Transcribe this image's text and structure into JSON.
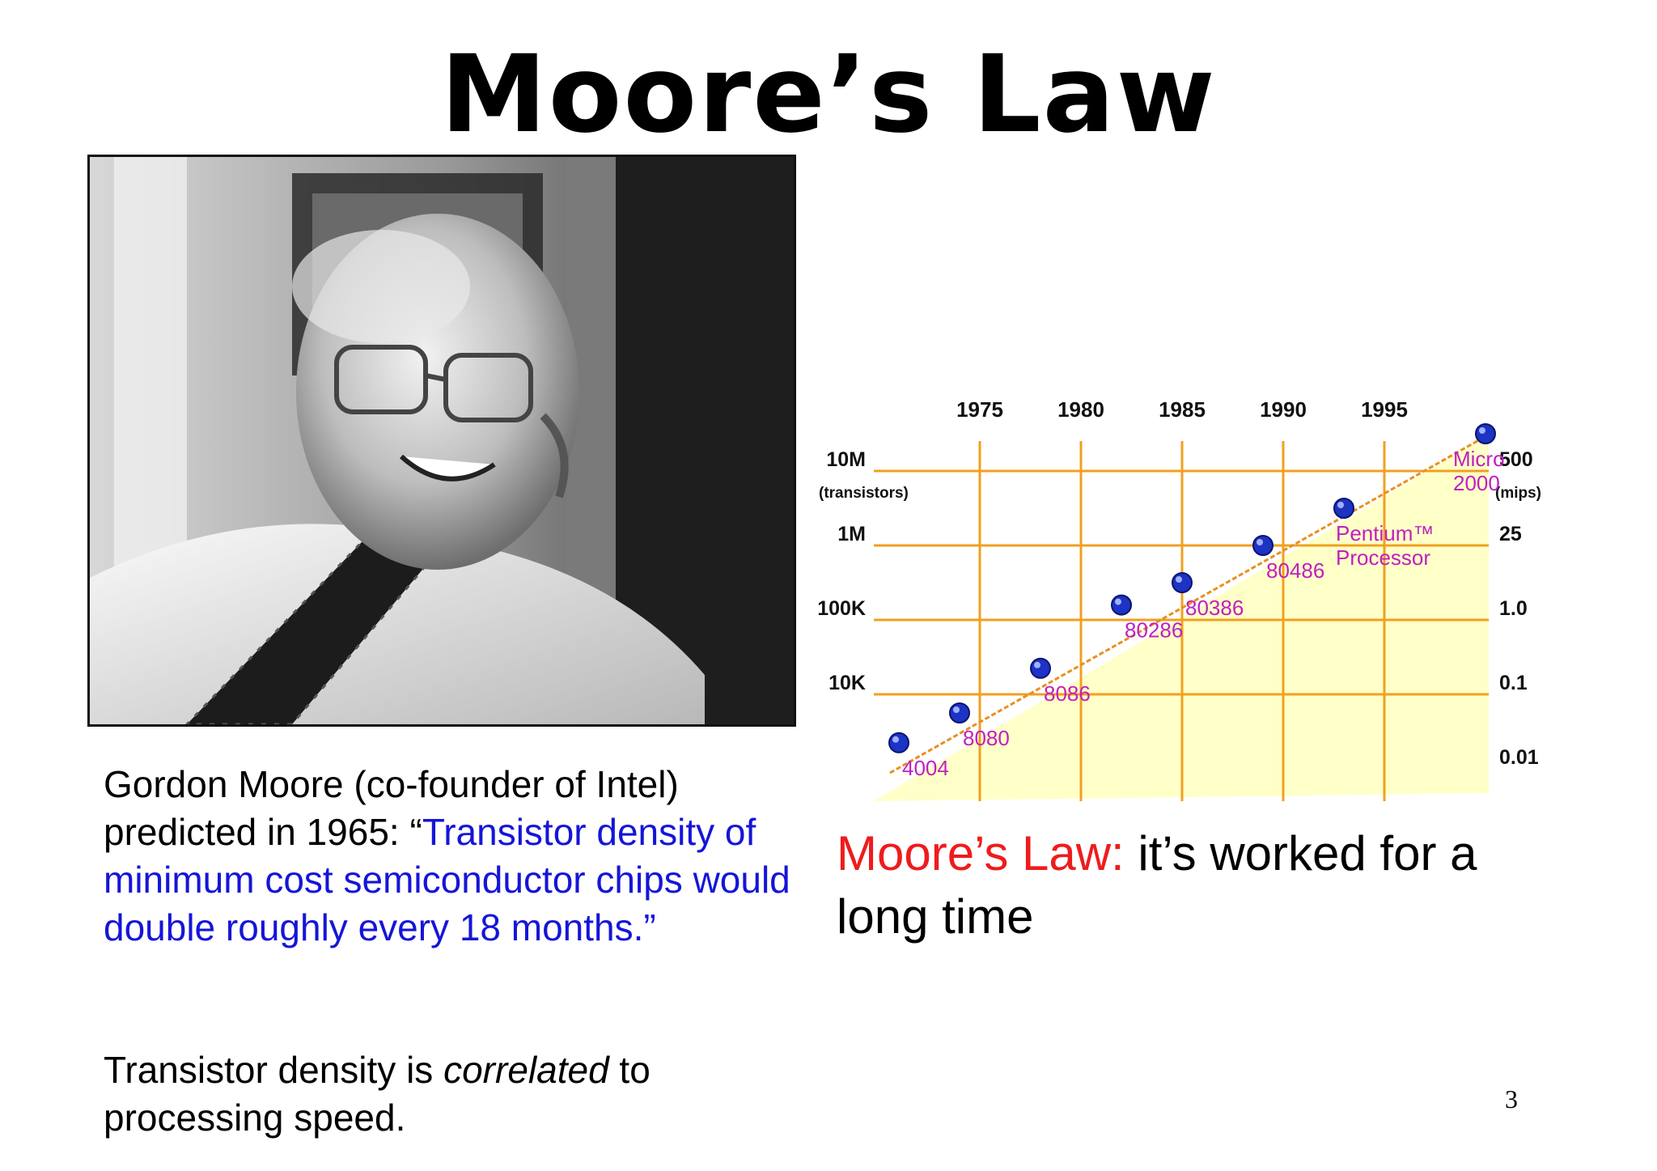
{
  "title": "Moore’s Law",
  "caption": {
    "intro": "Gordon Moore (co-founder of Intel) predicted in 1965: “",
    "quote": "Transistor density of minimum cost semiconductor chips would double roughly every 18 months.",
    "closing": "”"
  },
  "note": {
    "before": "Transistor density is ",
    "emphasis": "correlated",
    "after": " to processing speed."
  },
  "law": {
    "label": "Moore’s Law:",
    "text": "  it’s worked for a long time"
  },
  "page_number": "3",
  "chart_data": {
    "type": "scatter",
    "title": "",
    "x_ticks": [
      "1975",
      "1980",
      "1985",
      "1990",
      "1995"
    ],
    "y_left_ticks": [
      "10M",
      "1M",
      "100K",
      "10K"
    ],
    "y_left_unit": "(transistors)",
    "y_right_ticks": [
      "500",
      "25",
      "1.0",
      "0.1",
      "0.01"
    ],
    "y_right_unit": "(mips)",
    "grid": true,
    "colors": {
      "grid": "#f0a020",
      "fill": "#ffffc8",
      "point": "#1c33c4",
      "label": "#c020c0",
      "trend": "#e89020"
    },
    "points": [
      {
        "name": "4004",
        "year": 1971,
        "log_transistors": 3.35
      },
      {
        "name": "8080",
        "year": 1974,
        "log_transistors": 3.75
      },
      {
        "name": "8086",
        "year": 1978,
        "log_transistors": 4.35
      },
      {
        "name": "80286",
        "year": 1982,
        "log_transistors": 5.2
      },
      {
        "name": "80386",
        "year": 1985,
        "log_transistors": 5.5
      },
      {
        "name": "80486",
        "year": 1989,
        "log_transistors": 6.0
      },
      {
        "name": "Pentium™ Processor",
        "year": 1993,
        "log_transistors": 6.5
      },
      {
        "name": "Micro 2000",
        "year": 2000,
        "log_transistors": 7.5
      }
    ]
  }
}
